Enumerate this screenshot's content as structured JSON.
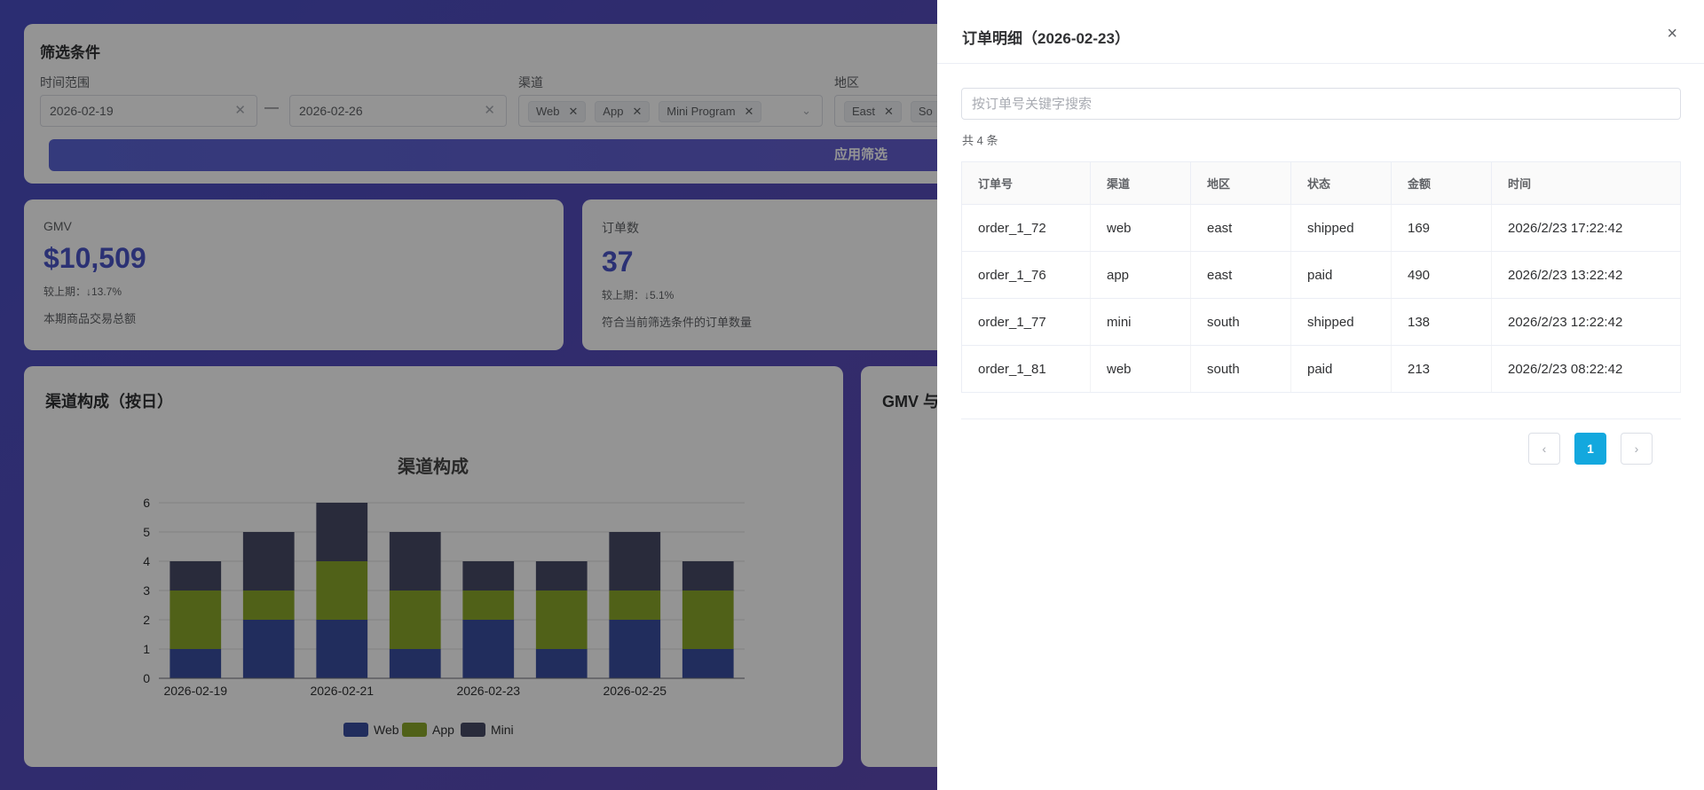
{
  "filters": {
    "title": "筛选条件",
    "time_label": "时间范围",
    "date_start": "2026-02-19",
    "date_end": "2026-02-26",
    "range_sep": "—",
    "channel_label": "渠道",
    "channel_tags": [
      "Web",
      "App",
      "Mini Program"
    ],
    "region_label": "地区",
    "region_tags": [
      "East",
      "So"
    ],
    "apply_label": "应用筛选"
  },
  "kpis": [
    {
      "name": "GMV",
      "value": "$10,509",
      "compare": "较上期：↓13.7%",
      "desc": "本期商品交易总额"
    },
    {
      "name": "订单数",
      "value": "37",
      "compare": "较上期：↓5.1%",
      "desc": "符合当前筛选条件的订单数量"
    }
  ],
  "channel_card_title": "渠道构成（按日）",
  "gmv_card_title": "GMV 与",
  "chart_data": {
    "type": "bar",
    "stacked": true,
    "title": "渠道构成",
    "categories": [
      "2026-02-19",
      "2026-02-20",
      "2026-02-21",
      "2026-02-22",
      "2026-02-23",
      "2026-02-24",
      "2026-02-25",
      "2026-02-26"
    ],
    "tick_labels": [
      "2026-02-19",
      "2026-02-21",
      "2026-02-23",
      "2026-02-25"
    ],
    "series": [
      {
        "name": "Web",
        "color": "#3a4fa0",
        "values": [
          1,
          2,
          2,
          1,
          2,
          1,
          2,
          1
        ]
      },
      {
        "name": "App",
        "color": "#8aa82a",
        "values": [
          2,
          1,
          2,
          2,
          1,
          2,
          1,
          2
        ]
      },
      {
        "name": "Mini",
        "color": "#474a66",
        "values": [
          1,
          2,
          2,
          2,
          1,
          1,
          2,
          1
        ]
      }
    ],
    "ylim": [
      0,
      6
    ],
    "yticks": [
      0,
      1,
      2,
      3,
      4,
      5,
      6
    ],
    "grid": true,
    "legend": "bottom"
  },
  "drawer": {
    "title": "订单明细（2026-02-23）",
    "close_icon": "×",
    "search_placeholder": "按订单号关键字搜索",
    "count_text": "共 4 条",
    "columns": [
      "订单号",
      "渠道",
      "地区",
      "状态",
      "金额",
      "时间"
    ],
    "rows": [
      [
        "order_1_72",
        "web",
        "east",
        "shipped",
        "169",
        "2026/2/23 17:22:42"
      ],
      [
        "order_1_76",
        "app",
        "east",
        "paid",
        "490",
        "2026/2/23 13:22:42"
      ],
      [
        "order_1_77",
        "mini",
        "south",
        "shipped",
        "138",
        "2026/2/23 12:22:42"
      ],
      [
        "order_1_81",
        "web",
        "south",
        "paid",
        "213",
        "2026/2/23 08:22:42"
      ]
    ],
    "pagination": {
      "prev": "‹",
      "current": "1",
      "next": "›"
    }
  }
}
